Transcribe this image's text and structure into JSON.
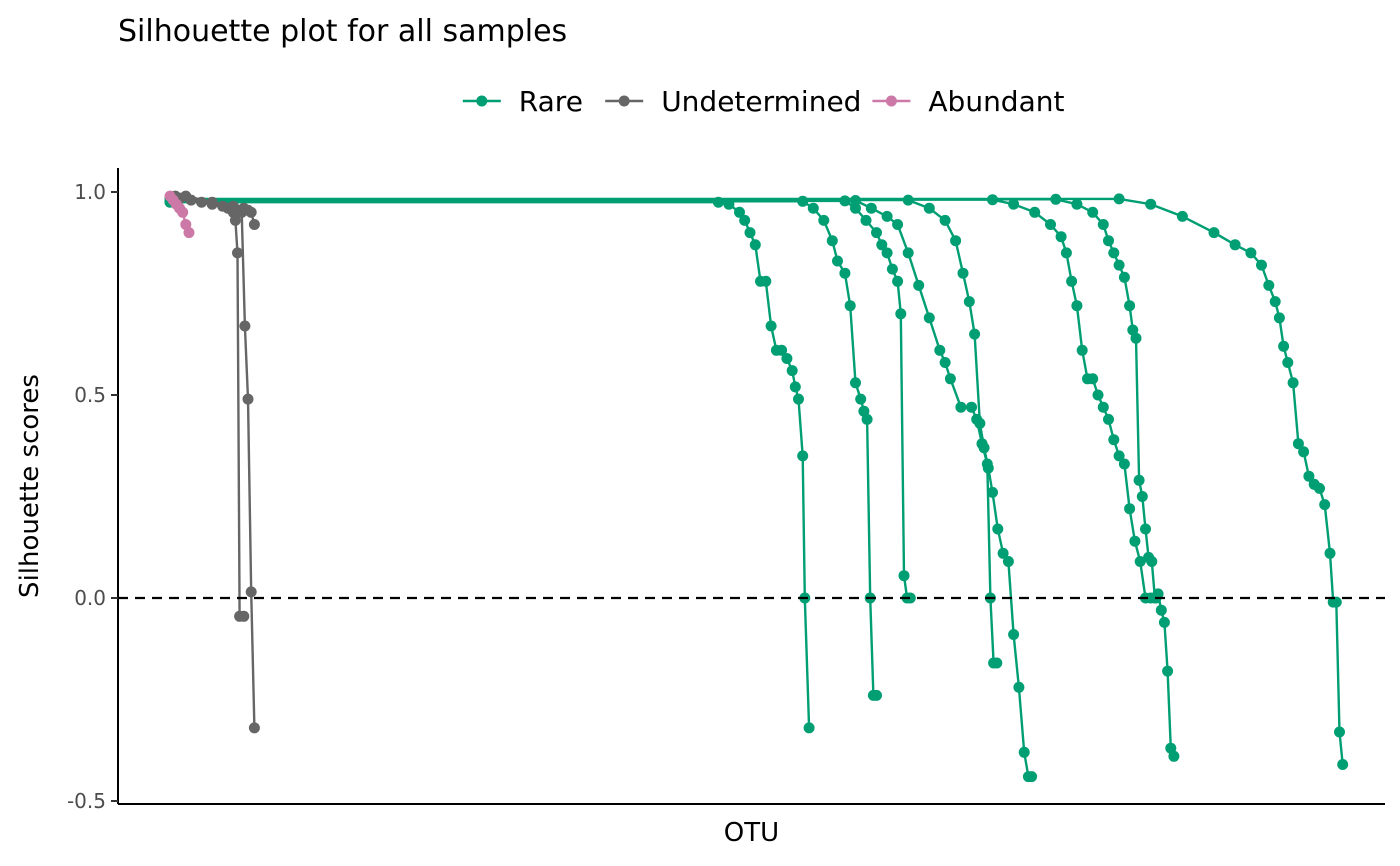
{
  "chart_data": {
    "type": "line",
    "title": "Silhouette plot for all samples",
    "xlabel": "OTU",
    "ylabel": "Silhouette scores",
    "xlim": [
      0,
      1100
    ],
    "ylim": [
      -0.5,
      1.05
    ],
    "yticks": [
      -0.5,
      0.0,
      0.5,
      1.0
    ],
    "ytick_labels": [
      "-0.5",
      "0.0",
      "0.5",
      "1.0"
    ],
    "reference_line": {
      "y": 0,
      "style": "dashed"
    },
    "legend_position": "top",
    "grid": false,
    "series": [
      {
        "name": "Rare",
        "color": "#009E73",
        "lines": [
          {
            "x": [
              0,
              520,
              530,
              540,
              545,
              550,
              555,
              560,
              565,
              570,
              575,
              580,
              585,
              590,
              593,
              596,
              600,
              602,
              606
            ],
            "y": [
              0.975,
              0.975,
              0.97,
              0.95,
              0.93,
              0.9,
              0.87,
              0.78,
              0.78,
              0.67,
              0.61,
              0.61,
              0.59,
              0.56,
              0.52,
              0.49,
              0.35,
              0.0,
              -0.32
            ]
          },
          {
            "x": [
              0,
              600,
              610,
              620,
              628,
              633,
              640,
              645,
              650,
              655,
              658,
              661,
              664,
              667,
              670
            ],
            "y": [
              0.977,
              0.977,
              0.96,
              0.93,
              0.88,
              0.83,
              0.8,
              0.72,
              0.53,
              0.49,
              0.46,
              0.44,
              0.0,
              -0.24,
              -0.24
            ]
          },
          {
            "x": [
              0,
              640,
              650,
              660,
              670,
              675,
              680,
              685,
              690,
              693,
              696,
              699,
              702
            ],
            "y": [
              0.978,
              0.978,
              0.96,
              0.93,
              0.9,
              0.87,
              0.85,
              0.81,
              0.78,
              0.7,
              0.055,
              0.0,
              0.0
            ]
          },
          {
            "x": [
              0,
              650,
              665,
              680,
              690,
              700,
              710,
              720,
              730,
              735,
              740,
              750,
              760,
              765,
              770,
              775,
              778,
              781,
              784
            ],
            "y": [
              0.979,
              0.979,
              0.96,
              0.94,
              0.92,
              0.85,
              0.77,
              0.69,
              0.61,
              0.58,
              0.54,
              0.47,
              0.47,
              0.44,
              0.38,
              0.33,
              0.0,
              -0.16,
              -0.16
            ]
          },
          {
            "x": [
              0,
              700,
              720,
              735,
              745,
              752,
              758,
              763,
              768,
              772,
              776,
              780,
              785,
              790,
              795,
              800,
              805,
              810,
              814,
              817
            ],
            "y": [
              0.98,
              0.98,
              0.96,
              0.93,
              0.88,
              0.8,
              0.73,
              0.65,
              0.43,
              0.37,
              0.32,
              0.26,
              0.17,
              0.11,
              0.09,
              -0.09,
              -0.22,
              -0.38,
              -0.44,
              -0.44
            ]
          },
          {
            "x": [
              0,
              780,
              800,
              820,
              835,
              845,
              850,
              855,
              860,
              865,
              870,
              875,
              880,
              885,
              890,
              895,
              900,
              905,
              910,
              915,
              920,
              925,
              930,
              935
            ],
            "y": [
              0.981,
              0.981,
              0.97,
              0.95,
              0.92,
              0.89,
              0.85,
              0.78,
              0.72,
              0.61,
              0.54,
              0.54,
              0.5,
              0.47,
              0.44,
              0.39,
              0.35,
              0.33,
              0.22,
              0.14,
              0.09,
              0.0,
              0.0,
              0.0
            ]
          },
          {
            "x": [
              0,
              840,
              860,
              875,
              885,
              890,
              895,
              900,
              905,
              910,
              913,
              916,
              919,
              922,
              925,
              928,
              931,
              934,
              937,
              940,
              943,
              946,
              949,
              952
            ],
            "y": [
              0.982,
              0.982,
              0.97,
              0.95,
              0.92,
              0.88,
              0.85,
              0.82,
              0.79,
              0.72,
              0.66,
              0.64,
              0.29,
              0.25,
              0.17,
              0.1,
              0.09,
              0.0,
              0.01,
              -0.03,
              -0.06,
              -0.18,
              -0.37,
              -0.39
            ]
          },
          {
            "x": [
              0,
              900,
              930,
              960,
              990,
              1010,
              1025,
              1035,
              1042,
              1048,
              1052,
              1056,
              1060,
              1065,
              1070,
              1075,
              1080,
              1085,
              1090,
              1095,
              1100,
              1103,
              1106,
              1109,
              1112
            ],
            "y": [
              0.983,
              0.983,
              0.97,
              0.94,
              0.9,
              0.87,
              0.85,
              0.82,
              0.77,
              0.73,
              0.69,
              0.62,
              0.58,
              0.53,
              0.38,
              0.36,
              0.3,
              0.28,
              0.27,
              0.23,
              0.11,
              -0.01,
              -0.01,
              -0.33,
              -0.41
            ]
          }
        ]
      },
      {
        "name": "Undetermined",
        "color": "#666666",
        "lines": [
          {
            "x": [
              5,
              20,
              40,
              55,
              60,
              62,
              64,
              66,
              70
            ],
            "y": [
              0.99,
              0.98,
              0.97,
              0.96,
              0.95,
              0.93,
              0.85,
              -0.045,
              -0.045
            ]
          },
          {
            "x": [
              10,
              30,
              50,
              60,
              65,
              68,
              71,
              74,
              77,
              80
            ],
            "y": [
              0.985,
              0.975,
              0.965,
              0.96,
              0.955,
              0.95,
              0.67,
              0.49,
              0.015,
              -0.32
            ]
          },
          {
            "x": [
              15,
              40,
              60,
              70,
              74,
              77,
              80
            ],
            "y": [
              0.99,
              0.975,
              0.965,
              0.96,
              0.955,
              0.95,
              0.92
            ]
          }
        ]
      },
      {
        "name": "Abundant",
        "color": "#CC79A7",
        "lines": [
          {
            "x": [
              0,
              3,
              6,
              9,
              12,
              15,
              18
            ],
            "y": [
              0.99,
              0.98,
              0.97,
              0.96,
              0.95,
              0.92,
              0.9
            ]
          }
        ]
      }
    ]
  }
}
